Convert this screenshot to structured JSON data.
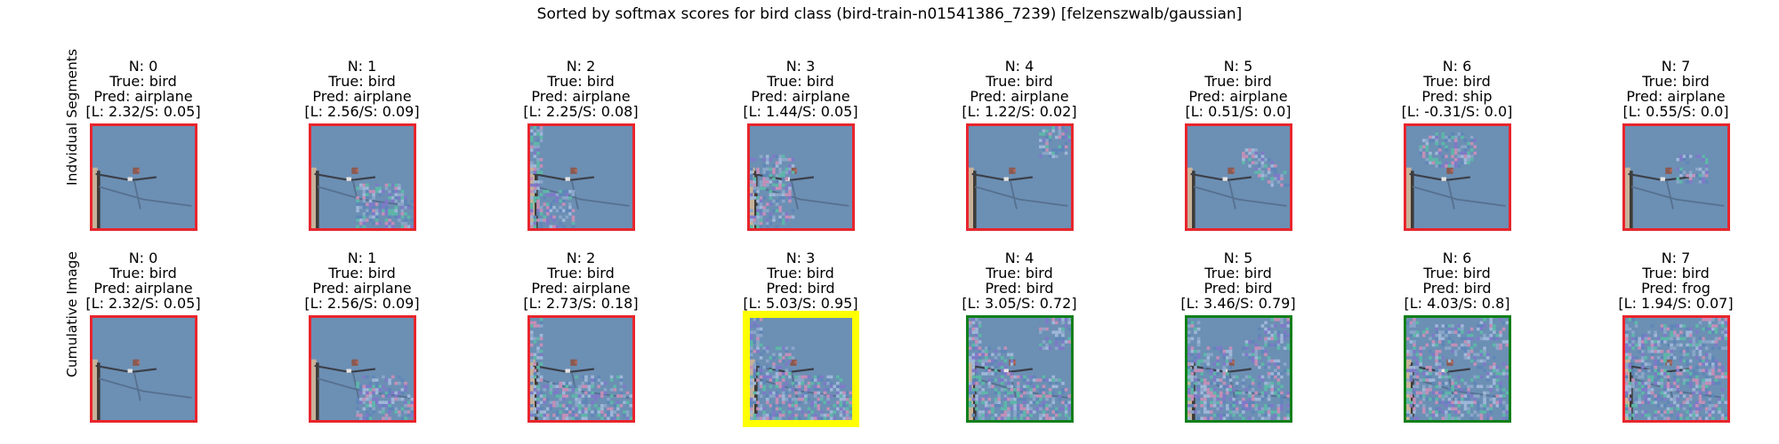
{
  "figure_title": "Sorted by softmax scores for bird class (bird-train-n01541386_7239) [felzenszwalb/gaussian]",
  "colors": {
    "sky": "#6c8fb4",
    "noise_light": "#8aa6c8",
    "noise_green": "#5db7a8",
    "noise_purple": "#7f79c9",
    "noise_pink": "#c48fb7",
    "border_red": "#e8252d",
    "border_green": "#127f1b",
    "border_yellow": "#ffff00"
  },
  "chart_data": {
    "type": "image-grid",
    "title": "Sorted by softmax scores for bird class (bird-train-n01541386_7239) [felzenszwalb/gaussian]",
    "rows": [
      {
        "label": "Indvidual Segments",
        "panels": [
          {
            "n": "N: 0",
            "truth": "True: bird",
            "pred": "Pred: airplane",
            "scores": "[L: 2.32/S: 0.05]",
            "border": "red",
            "noise": []
          },
          {
            "n": "N: 1",
            "truth": "True: bird",
            "pred": "Pred: airplane",
            "scores": "[L: 2.56/S: 0.09]",
            "border": "red",
            "noise": [
              1
            ]
          },
          {
            "n": "N: 2",
            "truth": "True: bird",
            "pred": "Pred: airplane",
            "scores": "[L: 2.25/S: 0.08]",
            "border": "red",
            "noise": [
              2
            ]
          },
          {
            "n": "N: 3",
            "truth": "True: bird",
            "pred": "Pred: airplane",
            "scores": "[L: 1.44/S: 0.05]",
            "border": "red",
            "noise": [
              3
            ]
          },
          {
            "n": "N: 4",
            "truth": "True: bird",
            "pred": "Pred: airplane",
            "scores": "[L: 1.22/S: 0.02]",
            "border": "red",
            "noise": [
              4
            ]
          },
          {
            "n": "N: 5",
            "truth": "True: bird",
            "pred": "Pred: airplane",
            "scores": "[L: 0.51/S: 0.0]",
            "border": "red",
            "noise": [
              5
            ]
          },
          {
            "n": "N: 6",
            "truth": "True: bird",
            "pred": "Pred: ship",
            "scores": "[L: -0.31/S: 0.0]",
            "border": "red",
            "noise": [
              6
            ]
          },
          {
            "n": "N: 7",
            "truth": "True: bird",
            "pred": "Pred: airplane",
            "scores": "[L: 0.55/S: 0.0]",
            "border": "red",
            "noise": [
              7
            ]
          }
        ]
      },
      {
        "label": "Cumulative Image",
        "panels": [
          {
            "n": "N: 0",
            "truth": "True: bird",
            "pred": "Pred: airplane",
            "scores": "[L: 2.32/S: 0.05]",
            "border": "red",
            "noise": []
          },
          {
            "n": "N: 1",
            "truth": "True: bird",
            "pred": "Pred: airplane",
            "scores": "[L: 2.56/S: 0.09]",
            "border": "red",
            "noise": [
              1
            ]
          },
          {
            "n": "N: 2",
            "truth": "True: bird",
            "pred": "Pred: airplane",
            "scores": "[L: 2.73/S: 0.18]",
            "border": "red",
            "noise": [
              1,
              2
            ]
          },
          {
            "n": "N: 3",
            "truth": "True: bird",
            "pred": "Pred: bird",
            "scores": "[L: 5.03/S: 0.95]",
            "border": "yellow",
            "noise": [
              1,
              2,
              3
            ]
          },
          {
            "n": "N: 4",
            "truth": "True: bird",
            "pred": "Pred: bird",
            "scores": "[L: 3.05/S: 0.72]",
            "border": "green",
            "noise": [
              1,
              2,
              3,
              4
            ]
          },
          {
            "n": "N: 5",
            "truth": "True: bird",
            "pred": "Pred: bird",
            "scores": "[L: 3.46/S: 0.79]",
            "border": "green",
            "noise": [
              1,
              2,
              3,
              4,
              5
            ]
          },
          {
            "n": "N: 6",
            "truth": "True: bird",
            "pred": "Pred: bird",
            "scores": "[L: 4.03/S: 0.8]",
            "border": "green",
            "noise": [
              1,
              2,
              3,
              4,
              5,
              6
            ]
          },
          {
            "n": "N: 7",
            "truth": "True: bird",
            "pred": "Pred: frog",
            "scores": "[L: 1.94/S: 0.07]",
            "border": "red",
            "noise": [
              1,
              2,
              3,
              4,
              5,
              6,
              7
            ]
          }
        ]
      }
    ]
  }
}
